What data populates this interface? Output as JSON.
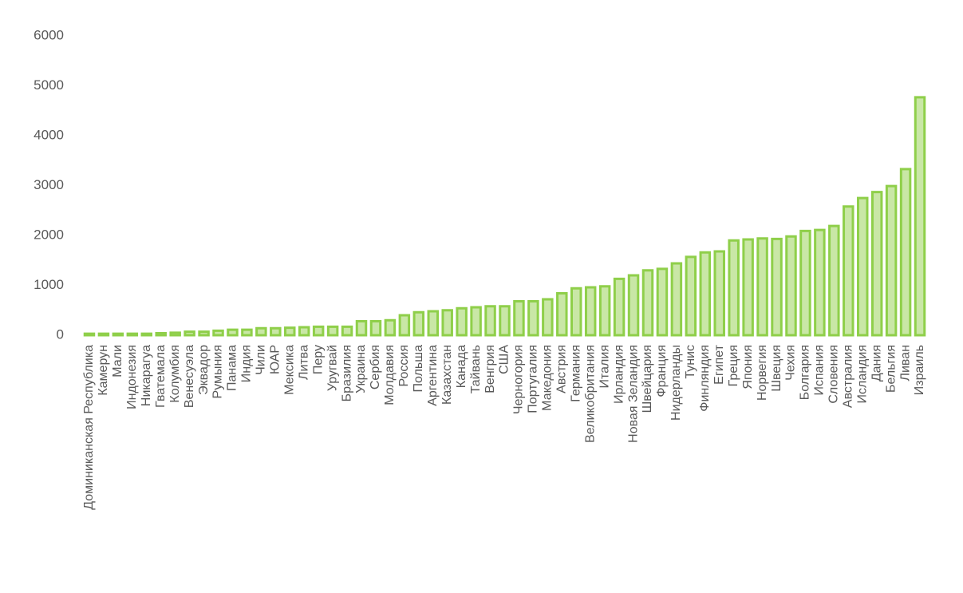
{
  "chart_data": {
    "type": "bar",
    "categories": [
      "Доминиканская Республика",
      "Камерун",
      "Мали",
      "Индонезия",
      "Никарагуа",
      "Гватемала",
      "Колумбия",
      "Венесуэла",
      "Эквадор",
      "Румыния",
      "Панама",
      "Индия",
      "Чили",
      "ЮАР",
      "Мексика",
      "Литва",
      "Перу",
      "Уругвай",
      "Бразилия",
      "Украина",
      "Сербия",
      "Молдавия",
      "Россия",
      "Польша",
      "Аргентина",
      "Казахстан",
      "Канада",
      "Тайвань",
      "Венгрия",
      "США",
      "Черногория",
      "Португалия",
      "Македония",
      "Австрия",
      "Германия",
      "Великобритания",
      "Италия",
      "Ирландия",
      "Новая Зеландия",
      "Швейцария",
      "Франция",
      "Нидерланды",
      "Тунис",
      "Финляндия",
      "Египет",
      "Греция",
      "Япония",
      "Норвегия",
      "Швеция",
      "Чехия",
      "Болгария",
      "Испания",
      "Словения",
      "Австралия",
      "Исландия",
      "Дания",
      "Бельгия",
      "Ливан",
      "Израиль"
    ],
    "values": [
      30,
      30,
      30,
      30,
      30,
      40,
      50,
      70,
      70,
      90,
      110,
      110,
      140,
      140,
      150,
      160,
      170,
      170,
      170,
      280,
      280,
      300,
      400,
      460,
      480,
      500,
      540,
      560,
      580,
      580,
      680,
      680,
      720,
      840,
      940,
      960,
      980,
      1130,
      1200,
      1300,
      1330,
      1440,
      1570,
      1660,
      1680,
      1900,
      1920,
      1940,
      1930,
      1980,
      2090,
      2110,
      2190,
      2580,
      2750,
      2870,
      2990,
      3330,
      4770
    ],
    "color": "#c9e7a6",
    "edge_color": "#8fcf4a",
    "ylim": [
      0,
      6000
    ],
    "yticks": [
      0,
      1000,
      2000,
      3000,
      4000,
      5000,
      6000
    ],
    "grid": false
  }
}
